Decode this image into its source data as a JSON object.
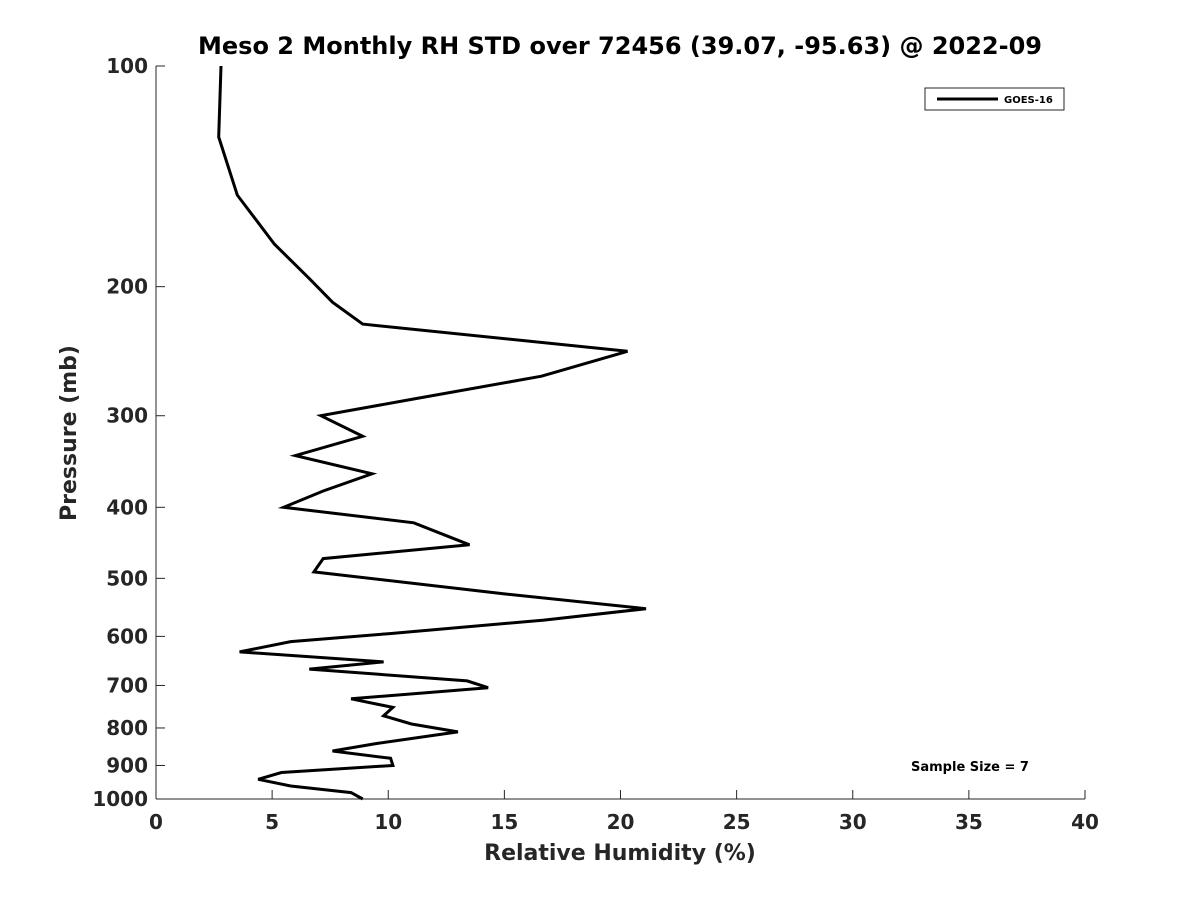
{
  "chart_data": {
    "type": "line",
    "title": "Meso 2 Monthly RH STD over 72456 (39.07, -95.63) @ 2022-09",
    "xlabel": "Relative Humidity (%)",
    "ylabel": "Pressure (mb)",
    "xlim": [
      0,
      40
    ],
    "ylim": [
      100,
      1000
    ],
    "yscale": "log",
    "y_reversed": true,
    "xticks": [
      0,
      5,
      10,
      15,
      20,
      25,
      30,
      35,
      40
    ],
    "yticks": [
      100,
      200,
      300,
      400,
      500,
      600,
      700,
      800,
      900,
      1000
    ],
    "grid": false,
    "legend_position": "top-right",
    "annotation": "Sample Size = 7",
    "series": [
      {
        "name": "GOES-16",
        "color": "#000000",
        "x": [
          2.8,
          2.7,
          3.5,
          5.1,
          6.6,
          7.6,
          8.9,
          20.3,
          16.6,
          11.0,
          7.1,
          8.9,
          6.0,
          9.3,
          7.2,
          5.5,
          11.1,
          13.5,
          7.2,
          6.8,
          15.0,
          21.1,
          16.7,
          10.0,
          5.8,
          3.6,
          9.8,
          6.6,
          13.4,
          14.3,
          8.4,
          10.2,
          9.8,
          11.0,
          13.0,
          9.5,
          7.6,
          10.1,
          10.2,
          5.4,
          4.4,
          5.8,
          8.4,
          8.9
        ],
        "y": [
          100,
          125,
          150,
          175,
          195,
          210,
          225,
          245,
          265,
          285,
          300,
          320,
          340,
          360,
          380,
          400,
          420,
          450,
          470,
          490,
          525,
          550,
          570,
          595,
          610,
          630,
          650,
          665,
          690,
          705,
          730,
          750,
          770,
          790,
          810,
          840,
          860,
          880,
          900,
          920,
          940,
          960,
          980,
          1000
        ]
      }
    ]
  }
}
